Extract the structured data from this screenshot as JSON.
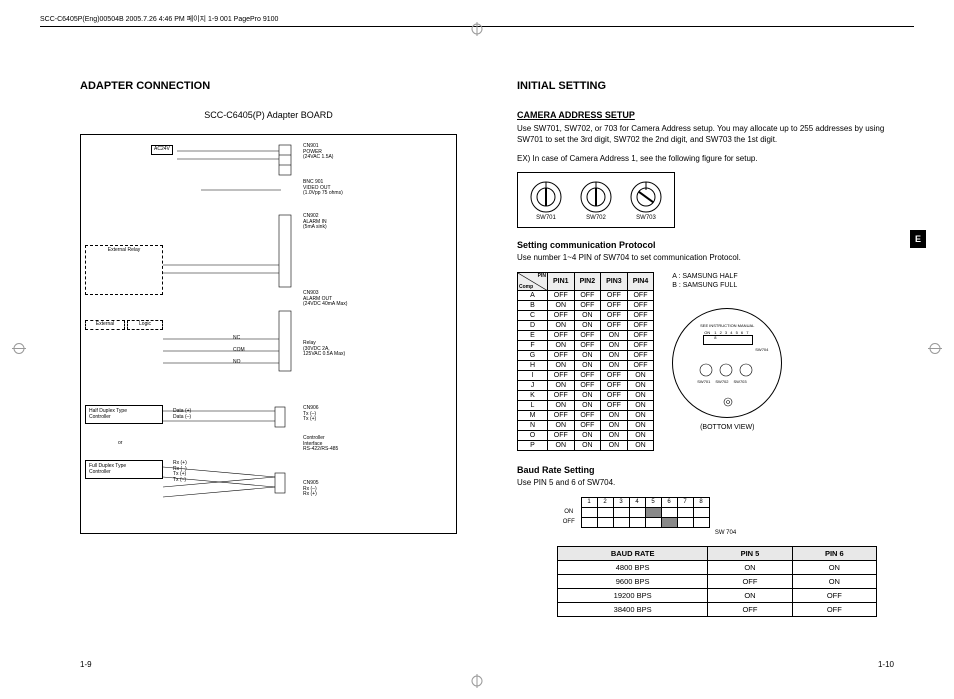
{
  "header": "SCC-C6405P(Eng)00504B  2005.7.26 4:46 PM  페이지 1-9   001 PagePro 9100",
  "sideTab": "E",
  "left": {
    "title": "ADAPTER CONNECTION",
    "subtitle": "SCC-C6405(P) Adapter BOARD",
    "pageNum": "1-9",
    "diagram": {
      "labels": {
        "ac24v": "AC24V",
        "cn901": "CN901\nPOWER\n(24VAC 1.5A)",
        "bnc901": "BNC 901\nVIDEO OUT\n(1.0Vpp 75 ohms)",
        "cn902": "CN902\nALARM IN\n(5mA sink)",
        "extRelay": "External Relay",
        "cn903": "CN903\nALARM OUT\n(24VDC 40mA Max)",
        "extLogic1": "External",
        "extLogic2": "Logic",
        "nc": "NC",
        "com": "COM",
        "no": "NO",
        "relay": "Relay\n(30VDC 2A,\n125VAC 0.5A Max)",
        "half": "Half Duplex Type\nController",
        "or": "or",
        "full": "Full Duplex Type\nController",
        "halfPins": "Data (+)\nData (–)",
        "fullPins": "Rx (+)\nRx (–)\nTx (+)\nTx (–)",
        "cn906": "CN906\nTx (–)\nTx (+)",
        "ctrlIf": "Controller\nInterface\nRS-422/RS-485",
        "cn905": "CN905\nRx (–)\nRx (+)"
      }
    }
  },
  "right": {
    "title": "INITIAL SETTING",
    "pageNum": "1-10",
    "camAddr": {
      "heading": "CAMERA ADDRESS SETUP",
      "text1": "Use SW701, SW702, or 703 for Camera Address setup. You may allocate up to 255 addresses by using SW701 to set the 3rd digit, SW702 the 2nd digit, and SW703 the 1st digit.",
      "text2": "EX) In case of Camera Address 1, see the following figure for setup.",
      "dials": [
        "SW701",
        "SW702",
        "SW703"
      ]
    },
    "protocol": {
      "heading": "Setting communication Protocol",
      "text": "Use number 1~4 PIN of SW704 to set communication Protocol.",
      "cornerTop": "PIN",
      "cornerBot": "Comp",
      "cols": [
        "PIN1",
        "PIN2",
        "PIN3",
        "PIN4"
      ],
      "rows": [
        [
          "A",
          "OFF",
          "OFF",
          "OFF",
          "OFF"
        ],
        [
          "B",
          "ON",
          "OFF",
          "OFF",
          "OFF"
        ],
        [
          "C",
          "OFF",
          "ON",
          "OFF",
          "OFF"
        ],
        [
          "D",
          "ON",
          "ON",
          "OFF",
          "OFF"
        ],
        [
          "E",
          "OFF",
          "OFF",
          "ON",
          "OFF"
        ],
        [
          "F",
          "ON",
          "OFF",
          "ON",
          "OFF"
        ],
        [
          "G",
          "OFF",
          "ON",
          "ON",
          "OFF"
        ],
        [
          "H",
          "ON",
          "ON",
          "ON",
          "OFF"
        ],
        [
          "I",
          "OFF",
          "OFF",
          "OFF",
          "ON"
        ],
        [
          "J",
          "ON",
          "OFF",
          "OFF",
          "ON"
        ],
        [
          "K",
          "OFF",
          "ON",
          "OFF",
          "ON"
        ],
        [
          "L",
          "ON",
          "ON",
          "OFF",
          "ON"
        ],
        [
          "M",
          "OFF",
          "OFF",
          "ON",
          "ON"
        ],
        [
          "N",
          "ON",
          "OFF",
          "ON",
          "ON"
        ],
        [
          "O",
          "OFF",
          "ON",
          "ON",
          "ON"
        ],
        [
          "P",
          "ON",
          "ON",
          "ON",
          "ON"
        ]
      ],
      "legendA": "A : SAMSUNG HALF",
      "legendB": "B : SAMSUNG FULL",
      "bottomView": "(BOTTOM VIEW)",
      "bvLabels": {
        "manual": "SEE INSTRUCTION MANUAL",
        "on": "ON",
        "nums": "1 2 3 4 5 6 7 8",
        "sw704": "SW704",
        "sw701": "SW701",
        "sw702": "SW702",
        "sw703": "SW703"
      }
    },
    "baud": {
      "heading": "Baud Rate Setting",
      "text": "Use PIN 5 and 6 of SW704.",
      "swNums": [
        "1",
        "2",
        "3",
        "4",
        "5",
        "6",
        "7",
        "8"
      ],
      "swOn": "ON",
      "swOff": "OFF",
      "swLabel": "SW 704",
      "cols": [
        "BAUD RATE",
        "PIN 5",
        "PIN 6"
      ],
      "rows": [
        [
          "4800 BPS",
          "ON",
          "ON"
        ],
        [
          "9600 BPS",
          "OFF",
          "ON"
        ],
        [
          "19200 BPS",
          "ON",
          "OFF"
        ],
        [
          "38400 BPS",
          "OFF",
          "OFF"
        ]
      ]
    }
  }
}
